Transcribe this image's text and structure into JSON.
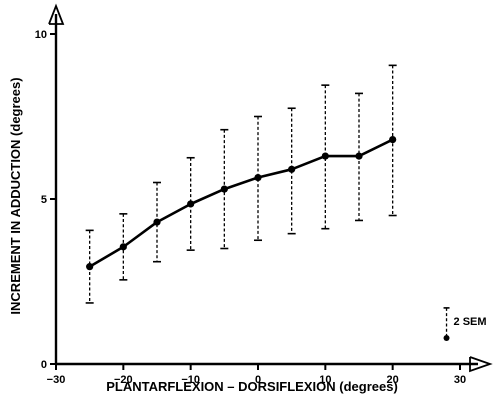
{
  "chart_data": {
    "type": "line",
    "title": "",
    "xlabel": "PLANTARFLEXION  –  DORSIFLEXION  (degrees)",
    "ylabel": "INCREMENT IN ADDUCTION  (degrees)",
    "xlim": [
      -30,
      30
    ],
    "ylim": [
      0,
      10
    ],
    "x_ticks": [
      -30,
      -20,
      -10,
      0,
      10,
      20,
      30
    ],
    "x_tick_labels": [
      "−30",
      "−20",
      "−10",
      "0",
      "10",
      "20",
      "30"
    ],
    "y_ticks": [
      0,
      5,
      10
    ],
    "y_tick_labels": [
      "0",
      "5",
      "10"
    ],
    "grid": false,
    "series": [
      {
        "x": [
          -25,
          -20,
          -15,
          -10,
          -5,
          0,
          5,
          10,
          15,
          20
        ],
        "y": [
          2.95,
          3.55,
          4.3,
          4.85,
          5.3,
          5.65,
          5.9,
          6.3,
          6.3,
          6.8
        ],
        "upper": [
          4.05,
          4.55,
          5.5,
          6.25,
          7.1,
          7.5,
          7.75,
          8.45,
          8.2,
          9.05
        ],
        "lower": [
          1.85,
          2.55,
          3.1,
          3.45,
          3.5,
          3.75,
          3.95,
          4.1,
          4.35,
          4.5
        ]
      }
    ],
    "annotations": [
      {
        "text": "2 SEM",
        "x": 28,
        "y": 1.3,
        "upper": 1.7,
        "lower": 0.85
      }
    ]
  }
}
